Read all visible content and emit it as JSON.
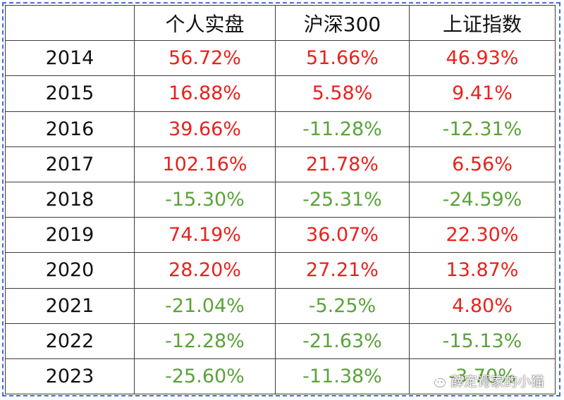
{
  "table": {
    "header": [
      "",
      "个人实盘",
      "沪深300",
      "上证指数"
    ],
    "rows": [
      {
        "year": "2014",
        "personal": "56.72%",
        "csi300": "51.66%",
        "shanghai": "46.93%"
      },
      {
        "year": "2015",
        "personal": "16.88%",
        "csi300": "5.58%",
        "shanghai": "9.41%"
      },
      {
        "year": "2016",
        "personal": "39.66%",
        "csi300": "-11.28%",
        "shanghai": "-12.31%"
      },
      {
        "year": "2017",
        "personal": "102.16%",
        "csi300": "21.78%",
        "shanghai": "6.56%"
      },
      {
        "year": "2018",
        "personal": "-15.30%",
        "csi300": "-25.31%",
        "shanghai": "-24.59%"
      },
      {
        "year": "2019",
        "personal": "74.19%",
        "csi300": "36.07%",
        "shanghai": "22.30%"
      },
      {
        "year": "2020",
        "personal": "28.20%",
        "csi300": "27.21%",
        "shanghai": "13.87%"
      },
      {
        "year": "2021",
        "personal": "-21.04%",
        "csi300": "-5.25%",
        "shanghai": "4.80%"
      },
      {
        "year": "2022",
        "personal": "-12.28%",
        "csi300": "-21.63%",
        "shanghai": "-15.13%"
      },
      {
        "year": "2023",
        "personal": "-25.60%",
        "csi300": "-11.38%",
        "shanghai": "-3.70%"
      }
    ]
  },
  "colors": {
    "positive": "#e8221c",
    "negative": "#5aa33a",
    "border": "#3c3c3c",
    "frame": "#3f6fd0"
  },
  "watermark": {
    "icon": "wechat-icon",
    "text": "薛定谔家的小猫"
  }
}
